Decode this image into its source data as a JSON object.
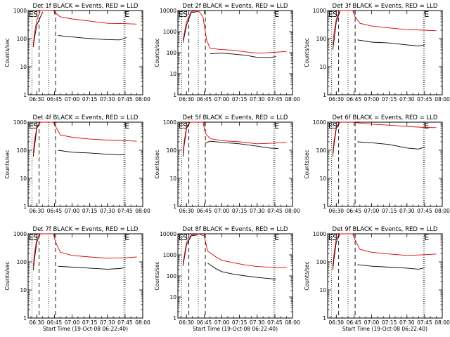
{
  "page": {
    "background": "#ffffff"
  },
  "chart_data": [
    {
      "type": "line",
      "title": "Det 1f BLACK = Events, RED = LLD",
      "ylabel": "Counts/sec",
      "xlabel": "",
      "y_scale": "log",
      "ylim": [
        1,
        1000
      ],
      "y_tick_labels": [
        "1",
        "10",
        "100",
        "1000"
      ],
      "x_tick_labels": [
        "06:30",
        "06:45",
        "07:00",
        "07:15",
        "07:30",
        "07:45",
        "08:00"
      ],
      "markers": [
        {
          "label": "E",
          "pos": "left"
        },
        {
          "label": "S",
          "pos": "left2"
        },
        {
          "label": "E",
          "pos": "right"
        }
      ],
      "series": [
        {
          "name": "BLACK = Events",
          "color": "#000000",
          "x": [
            "06:27",
            "06:28",
            "06:30",
            "06:35",
            "06:40",
            "06:45",
            "06:48",
            "06:55",
            "07:00",
            "07:10",
            "07:20",
            "07:30",
            "07:40",
            "07:44",
            "07:46"
          ],
          "values": [
            50,
            100,
            300,
            900,
            null,
            null,
            130,
            120,
            115,
            105,
            98,
            92,
            90,
            100,
            110
          ]
        },
        {
          "name": "RED = LLD",
          "color": "#e00000",
          "x": [
            "06:27",
            "06:28",
            "06:30",
            "06:33",
            "06:40",
            "06:44",
            "06:46",
            "06:50",
            "07:00",
            "07:15",
            "07:30",
            "07:45",
            "07:55"
          ],
          "values": [
            60,
            150,
            450,
            1000,
            1000,
            1000,
            800,
            600,
            500,
            420,
            350,
            340,
            330
          ]
        }
      ]
    },
    {
      "type": "line",
      "title": "Det 2f BLACK = Events, RED = LLD",
      "ylabel": "Counts/sec",
      "xlabel": "",
      "y_scale": "log",
      "ylim": [
        1,
        10000
      ],
      "y_tick_labels": [
        "1",
        "10",
        "100",
        "1000",
        "10000"
      ],
      "x_tick_labels": [
        "06:30",
        "06:45",
        "07:00",
        "07:15",
        "07:30",
        "07:45",
        "08:00"
      ],
      "markers": [
        {
          "label": "E",
          "pos": "left"
        },
        {
          "label": "S",
          "pos": "left2"
        },
        {
          "label": "E",
          "pos": "right"
        }
      ],
      "series": [
        {
          "name": "BLACK = Events",
          "color": "#000000",
          "x": [
            "06:27",
            "06:30",
            "06:34",
            "06:40",
            "06:44",
            "06:46",
            "06:50",
            "07:00",
            "07:10",
            "07:20",
            "07:30",
            "07:40",
            "07:46"
          ],
          "values": [
            300,
            2000,
            8000,
            9000,
            null,
            null,
            90,
            95,
            85,
            75,
            60,
            58,
            65
          ]
        },
        {
          "name": "RED = LLD",
          "color": "#e00000",
          "x": [
            "06:27",
            "06:30",
            "06:34",
            "06:40",
            "06:44",
            "06:47",
            "06:50",
            "07:00",
            "07:10",
            "07:20",
            "07:30",
            "07:40",
            "07:50",
            "07:55"
          ],
          "values": [
            400,
            3000,
            9000,
            10000,
            5000,
            400,
            160,
            140,
            130,
            110,
            95,
            100,
            110,
            115
          ]
        }
      ]
    },
    {
      "type": "line",
      "title": "Det 3f BLACK = Events, RED = LLD",
      "ylabel": "Counts/sec",
      "xlabel": "",
      "y_scale": "log",
      "ylim": [
        1,
        1000
      ],
      "y_tick_labels": [
        "1",
        "10",
        "100",
        "1000"
      ],
      "x_tick_labels": [
        "06:30",
        "06:45",
        "07:00",
        "07:15",
        "07:30",
        "07:45",
        "08:00"
      ],
      "markers": [
        {
          "label": "E",
          "pos": "left"
        },
        {
          "label": "S",
          "pos": "left2"
        },
        {
          "label": "E",
          "pos": "right"
        }
      ],
      "series": [
        {
          "name": "BLACK = Events",
          "color": "#000000",
          "x": [
            "06:27",
            "06:28",
            "06:30",
            "06:33",
            "06:46",
            "06:48",
            "07:00",
            "07:15",
            "07:30",
            "07:40",
            "07:45"
          ],
          "values": [
            40,
            80,
            400,
            900,
            null,
            90,
            75,
            70,
            60,
            55,
            60
          ]
        },
        {
          "name": "RED = LLD",
          "color": "#e00000",
          "x": [
            "06:27",
            "06:28",
            "06:30",
            "06:33",
            "06:40",
            "06:44",
            "06:46",
            "06:50",
            "07:00",
            "07:15",
            "07:30",
            "07:45",
            "07:55"
          ],
          "values": [
            60,
            150,
            500,
            1000,
            1000,
            1000,
            600,
            350,
            280,
            240,
            210,
            200,
            190
          ]
        }
      ]
    },
    {
      "type": "line",
      "title": "Det 4f BLACK = Events, RED = LLD",
      "ylabel": "Counts/sec",
      "xlabel": "",
      "y_scale": "log",
      "ylim": [
        1,
        1000
      ],
      "y_tick_labels": [
        "1",
        "10",
        "100",
        "1000"
      ],
      "x_tick_labels": [
        "06:30",
        "06:45",
        "07:00",
        "07:15",
        "07:30",
        "07:45",
        "08:00"
      ],
      "markers": [
        {
          "label": "E",
          "pos": "left"
        },
        {
          "label": "S",
          "pos": "left2"
        },
        {
          "label": "E",
          "pos": "right"
        }
      ],
      "series": [
        {
          "name": "BLACK = Events",
          "color": "#000000",
          "x": [
            "06:27",
            "06:28",
            "06:30",
            "06:33",
            "06:46",
            "06:48",
            "07:00",
            "07:15",
            "07:30",
            "07:40",
            "07:45"
          ],
          "values": [
            60,
            120,
            600,
            1000,
            null,
            100,
            85,
            80,
            72,
            68,
            70
          ]
        },
        {
          "name": "RED = LLD",
          "color": "#e00000",
          "x": [
            "06:27",
            "06:28",
            "06:30",
            "06:33",
            "06:40",
            "06:44",
            "06:46",
            "06:50",
            "07:00",
            "07:15",
            "07:30",
            "07:45",
            "07:55"
          ],
          "values": [
            80,
            200,
            700,
            1000,
            1000,
            1000,
            700,
            350,
            290,
            250,
            230,
            220,
            210
          ]
        }
      ]
    },
    {
      "type": "line",
      "title": "Det 5f BLACK = Events, RED = LLD",
      "ylabel": "Counts/sec",
      "xlabel": "",
      "y_scale": "log",
      "ylim": [
        1,
        1000
      ],
      "y_tick_labels": [
        "1",
        "10",
        "100",
        "1000"
      ],
      "x_tick_labels": [
        "06:30",
        "06:45",
        "07:00",
        "07:15",
        "07:30",
        "07:45",
        "08:00"
      ],
      "markers": [
        {
          "label": "E",
          "pos": "left"
        },
        {
          "label": "S",
          "pos": "left2"
        },
        {
          "label": "E",
          "pos": "right"
        }
      ],
      "series": [
        {
          "name": "BLACK = Events",
          "color": "#000000",
          "x": [
            "06:27",
            "06:28",
            "06:30",
            "06:33",
            "06:40",
            "06:44",
            "06:46",
            "06:50",
            "07:00",
            "07:15",
            "07:30",
            "07:40",
            "07:48"
          ],
          "values": [
            60,
            150,
            600,
            1000,
            1000,
            null,
            180,
            210,
            190,
            170,
            140,
            120,
            115
          ]
        },
        {
          "name": "RED = LLD",
          "color": "#e00000",
          "x": [
            "06:27",
            "06:28",
            "06:30",
            "06:33",
            "06:40",
            "06:44",
            "06:46",
            "06:50",
            "07:00",
            "07:15",
            "07:30",
            "07:45",
            "07:55"
          ],
          "values": [
            80,
            200,
            700,
            1000,
            1000,
            1000,
            400,
            260,
            220,
            200,
            170,
            180,
            190
          ]
        }
      ]
    },
    {
      "type": "line",
      "title": "Det 6f BLACK = Events, RED = LLD",
      "ylabel": "Counts/sec",
      "xlabel": "",
      "y_scale": "log",
      "ylim": [
        1,
        1000
      ],
      "y_tick_labels": [
        "1",
        "10",
        "100",
        "1000"
      ],
      "x_tick_labels": [
        "06:30",
        "06:45",
        "07:00",
        "07:15",
        "07:30",
        "07:45",
        "08:00"
      ],
      "markers": [
        {
          "label": "E",
          "pos": "left"
        },
        {
          "label": "S",
          "pos": "left2"
        },
        {
          "label": "E",
          "pos": "right"
        }
      ],
      "series": [
        {
          "name": "BLACK = Events",
          "color": "#000000",
          "x": [
            "06:27",
            "06:28",
            "06:30",
            "06:33",
            "06:46",
            "06:48",
            "07:00",
            "07:15",
            "07:30",
            "07:40",
            "07:45"
          ],
          "values": [
            60,
            150,
            600,
            1000,
            null,
            200,
            185,
            160,
            120,
            110,
            130
          ]
        },
        {
          "name": "RED = LLD",
          "color": "#e00000",
          "x": [
            "06:27",
            "06:28",
            "06:30",
            "06:33",
            "06:40",
            "06:44",
            "06:48",
            "07:00",
            "07:15",
            "07:30",
            "07:45",
            "07:55"
          ],
          "values": [
            80,
            200,
            700,
            1000,
            1000,
            1000,
            950,
            850,
            780,
            700,
            650,
            640
          ]
        }
      ]
    },
    {
      "type": "line",
      "title": "Det 7f BLACK = Events, RED = LLD",
      "ylabel": "Counts/sec",
      "xlabel": "Start Time (19-Oct-08 06:22:40)",
      "y_scale": "log",
      "ylim": [
        1,
        1000
      ],
      "y_tick_labels": [
        "1",
        "10",
        "100",
        "1000"
      ],
      "x_tick_labels": [
        "06:30",
        "06:45",
        "07:00",
        "07:15",
        "07:30",
        "07:45",
        "08:00"
      ],
      "markers": [
        {
          "label": "E",
          "pos": "left"
        },
        {
          "label": "S",
          "pos": "left2"
        },
        {
          "label": "E",
          "pos": "right"
        }
      ],
      "series": [
        {
          "name": "BLACK = Events",
          "color": "#000000",
          "x": [
            "06:27",
            "06:28",
            "06:30",
            "06:33",
            "06:46",
            "06:48",
            "07:00",
            "07:15",
            "07:30",
            "07:40",
            "07:45"
          ],
          "values": [
            50,
            120,
            500,
            1000,
            null,
            70,
            65,
            60,
            55,
            58,
            62
          ]
        },
        {
          "name": "RED = LLD",
          "color": "#e00000",
          "x": [
            "06:27",
            "06:28",
            "06:30",
            "06:33",
            "06:40",
            "06:44",
            "06:46",
            "06:50",
            "07:00",
            "07:15",
            "07:30",
            "07:45",
            "07:55"
          ],
          "values": [
            70,
            180,
            700,
            1000,
            1000,
            1000,
            500,
            220,
            170,
            150,
            135,
            140,
            150
          ]
        }
      ]
    },
    {
      "type": "line",
      "title": "Det 8f BLACK = Events, RED = LLD",
      "ylabel": "Counts/sec",
      "xlabel": "Start Time (19-Oct-08 06:22:40)",
      "y_scale": "log",
      "ylim": [
        1,
        10000
      ],
      "y_tick_labels": [
        "1",
        "10",
        "100",
        "1000",
        "10000"
      ],
      "x_tick_labels": [
        "06:30",
        "06:45",
        "07:00",
        "07:15",
        "07:30",
        "07:45",
        "08:00"
      ],
      "markers": [
        {
          "label": "E",
          "pos": "left"
        },
        {
          "label": "S",
          "pos": "left2"
        },
        {
          "label": "E",
          "pos": "right"
        }
      ],
      "series": [
        {
          "name": "BLACK = Events",
          "color": "#000000",
          "x": [
            "06:27",
            "06:30",
            "06:34",
            "06:40",
            "06:45",
            "06:48",
            "06:55",
            "07:00",
            "07:10",
            "07:20",
            "07:30",
            "07:40",
            "07:46"
          ],
          "values": [
            300,
            3000,
            8000,
            9000,
            null,
            400,
            220,
            160,
            120,
            100,
            85,
            75,
            70
          ]
        },
        {
          "name": "RED = LLD",
          "color": "#e00000",
          "x": [
            "06:27",
            "06:30",
            "06:34",
            "06:40",
            "06:45",
            "06:48",
            "06:55",
            "07:00",
            "07:10",
            "07:20",
            "07:30",
            "07:40",
            "07:50",
            "07:55"
          ],
          "values": [
            400,
            4000,
            9000,
            10000,
            8000,
            1500,
            800,
            550,
            420,
            330,
            280,
            260,
            250,
            260
          ]
        }
      ]
    },
    {
      "type": "line",
      "title": "Det 9f BLACK = Events, RED = LLD",
      "ylabel": "Counts/sec",
      "xlabel": "Start Time (19-Oct-08 06:22:40)",
      "y_scale": "log",
      "ylim": [
        1,
        1000
      ],
      "y_tick_labels": [
        "1",
        "10",
        "100",
        "1000"
      ],
      "x_tick_labels": [
        "06:30",
        "06:45",
        "07:00",
        "07:15",
        "07:30",
        "07:45",
        "08:00"
      ],
      "markers": [
        {
          "label": "E",
          "pos": "left"
        },
        {
          "label": "S",
          "pos": "left2"
        },
        {
          "label": "E",
          "pos": "right"
        }
      ],
      "series": [
        {
          "name": "BLACK = Events",
          "color": "#000000",
          "x": [
            "06:27",
            "06:28",
            "06:30",
            "06:33",
            "06:46",
            "06:48",
            "07:00",
            "07:15",
            "07:30",
            "07:40",
            "07:45"
          ],
          "values": [
            50,
            120,
            500,
            1000,
            null,
            80,
            70,
            65,
            60,
            55,
            62
          ]
        },
        {
          "name": "RED = LLD",
          "color": "#e00000",
          "x": [
            "06:27",
            "06:28",
            "06:30",
            "06:33",
            "06:40",
            "06:44",
            "06:46",
            "06:50",
            "07:00",
            "07:15",
            "07:30",
            "07:45",
            "07:55"
          ],
          "values": [
            70,
            180,
            700,
            1000,
            1000,
            1000,
            600,
            280,
            220,
            190,
            170,
            180,
            190
          ]
        }
      ]
    }
  ]
}
